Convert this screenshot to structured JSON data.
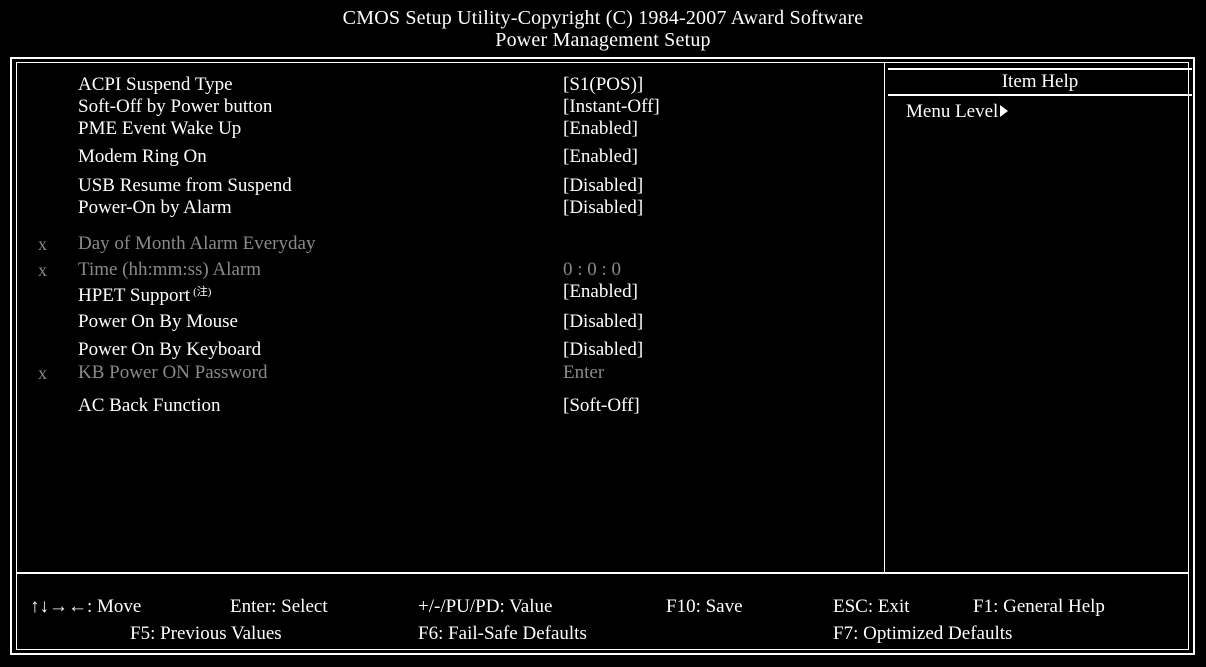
{
  "header": {
    "title": "CMOS Setup Utility-Copyright (C) 1984-2007 Award Software",
    "subtitle": "Power Management Setup"
  },
  "settings": [
    {
      "marker": "",
      "label": "ACPI Suspend Type",
      "value": "[S1(POS)]",
      "disabled": false
    },
    {
      "marker": "",
      "label": "Soft-Off by Power button",
      "value": "[Instant-Off]",
      "disabled": false
    },
    {
      "marker": "",
      "label": "PME Event Wake Up",
      "value": "[Enabled]",
      "disabled": false
    },
    {
      "marker": "",
      "label": "Modem Ring On",
      "value": "[Enabled]",
      "disabled": false
    },
    {
      "marker": "",
      "label": "USB Resume from Suspend",
      "value": "[Disabled]",
      "disabled": false
    },
    {
      "marker": "",
      "label": "Power-On by Alarm",
      "value": "[Disabled]",
      "disabled": false
    },
    {
      "marker": "x",
      "label": "Day of Month Alarm Everyday",
      "value": "",
      "disabled": true
    },
    {
      "marker": "x",
      "label": "Time (hh:mm:ss) Alarm",
      "value": "0 : 0 : 0",
      "disabled": true
    },
    {
      "marker": "",
      "label": "HPET Support",
      "note": "(注)",
      "value": "[Enabled]",
      "disabled": false
    },
    {
      "marker": "",
      "label": "Power On By Mouse",
      "value": "[Disabled]",
      "disabled": false
    },
    {
      "marker": "",
      "label": "Power On By Keyboard",
      "value": "[Disabled]",
      "disabled": false
    },
    {
      "marker": "x",
      "label": "KB Power ON Password",
      "value": "Enter",
      "disabled": true
    },
    {
      "marker": "",
      "label": "AC Back Function",
      "value": "[Soft-Off]",
      "disabled": false
    }
  ],
  "help": {
    "title": "Item Help",
    "menu_level": "Menu Level"
  },
  "footer": {
    "move": "↑↓→←: Move",
    "enter": "Enter: Select",
    "value": "+/-/PU/PD: Value",
    "save": "F10: Save",
    "exit": "ESC: Exit",
    "general_help": "F1: General Help",
    "previous": "F5: Previous Values",
    "failsafe": "F6: Fail-Safe Defaults",
    "optimized": "F7: Optimized Defaults"
  },
  "colors": {
    "background": "#000000",
    "text": "#ffffff",
    "disabled_text": "#8a8a8a"
  }
}
